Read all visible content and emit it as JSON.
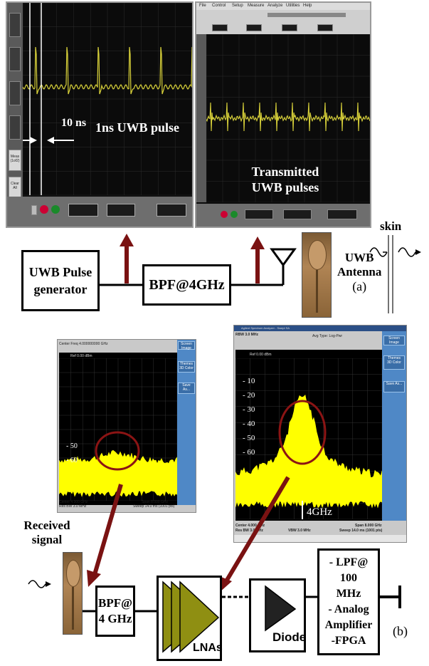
{
  "scope_left": {
    "pulse_period_label": "10 ns",
    "pulse_label": "1ns UWB pulse",
    "side_keys": [
      "Meas\n(1of2)",
      "Clear\nAll"
    ]
  },
  "scope_right": {
    "menu": [
      "File",
      "Control",
      "Setup",
      "Measure",
      "Analyze",
      "Utilities",
      "Help"
    ],
    "pulses_label_line1": "Transmitted",
    "pulses_label_line2": "UWB pulses"
  },
  "top_chain": {
    "pulse_generator_line1": "UWB Pulse",
    "pulse_generator_line2": "generator",
    "bpf": "BPF@4GHz",
    "antenna_line1": "UWB",
    "antenna_line2": "Antenna",
    "tag_a": "(a)",
    "skin": "skin"
  },
  "sa_left": {
    "header": "Center Freq  4.000000000 GHz",
    "ref": "Ref 0.00 dBm",
    "levels": [
      "- 50",
      "- 60"
    ],
    "footer_left": "Center 4.000 GHz",
    "footer_left2": "Res BW 3.0 MHz",
    "footer_right": "Span 8.000 GHz",
    "footer_right2": "Sweep 14.0 ms (1001 pts)",
    "keys": [
      "Screen Image",
      "Themes\n3D Color",
      "Save As..."
    ]
  },
  "sa_right": {
    "title": "Agilent Spectrum Analyzer - Swept SA",
    "header": "RBW 3.0 MHz",
    "avg_type": "Avg Type: Log-Pwr",
    "ref": "Ref 0.00 dBm",
    "levels": [
      "- 10",
      "- 20",
      "- 30",
      "- 40",
      "- 50",
      "- 60"
    ],
    "marker_label": "4GHz",
    "footer_left": "Center 4.000 GHz",
    "footer_left2": "Res BW 3.0 MHz",
    "footer_mid": "VBW 3.0 MHz",
    "footer_right": "Span 8.000 GHz",
    "footer_right2": "Sweep 14.0 ms (1001 pts)",
    "keys": [
      "Screen Image",
      "Themes\n3D Color",
      "Save As..."
    ]
  },
  "bottom_chain": {
    "received_line1": "Received",
    "received_line2": "signal",
    "bpf_line1": "BPF@",
    "bpf_line2": "4 GHz",
    "lnas": "LNAs",
    "diode": "Diode",
    "box_line1": "- LPF@ 100",
    "box_line2": "MHz",
    "box_line3": "-  Analog",
    "box_line4": "Amplifier",
    "box_line5": "-FPGA",
    "tag_b": "(b)"
  },
  "colors": {
    "trace": "#d9d23a",
    "spectrum": "#ffff00",
    "arrow": "#7a1212",
    "circle": "#8b1414",
    "lna": "#8f8f12",
    "sa_side": "#4f88c6"
  }
}
